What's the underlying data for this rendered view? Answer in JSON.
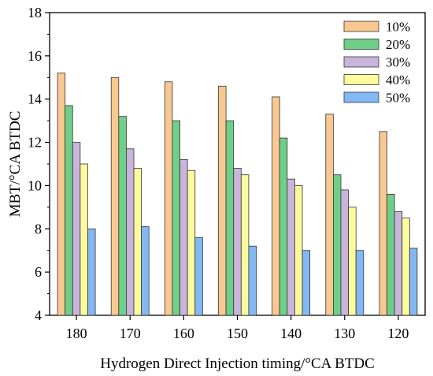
{
  "chart_data": {
    "type": "bar",
    "title": "",
    "xlabel": "Hydrogen Direct Injection timing/°CA BTDC",
    "ylabel": "MBT/°CA BTDC",
    "ylim": [
      4,
      18
    ],
    "yticks": [
      4,
      6,
      8,
      10,
      12,
      14,
      16,
      18
    ],
    "categories": [
      "180",
      "170",
      "160",
      "150",
      "140",
      "130",
      "120"
    ],
    "series": [
      {
        "name": "10%",
        "color": "#F9C891",
        "values": [
          15.2,
          15.0,
          14.8,
          14.6,
          14.1,
          13.3,
          12.5
        ]
      },
      {
        "name": "20%",
        "color": "#6FCF88",
        "values": [
          13.7,
          13.2,
          13.0,
          13.0,
          12.2,
          10.5,
          9.6
        ]
      },
      {
        "name": "30%",
        "color": "#C9B4DC",
        "values": [
          12.0,
          11.7,
          11.2,
          10.8,
          10.3,
          9.8,
          8.8
        ]
      },
      {
        "name": "40%",
        "color": "#FBFB9E",
        "values": [
          11.0,
          10.8,
          10.7,
          10.5,
          10.0,
          9.0,
          8.5
        ]
      },
      {
        "name": "50%",
        "color": "#84B8F4",
        "values": [
          8.0,
          8.1,
          7.6,
          7.2,
          7.0,
          7.0,
          7.1
        ]
      }
    ],
    "grid": false,
    "legend_position": "top-right"
  }
}
